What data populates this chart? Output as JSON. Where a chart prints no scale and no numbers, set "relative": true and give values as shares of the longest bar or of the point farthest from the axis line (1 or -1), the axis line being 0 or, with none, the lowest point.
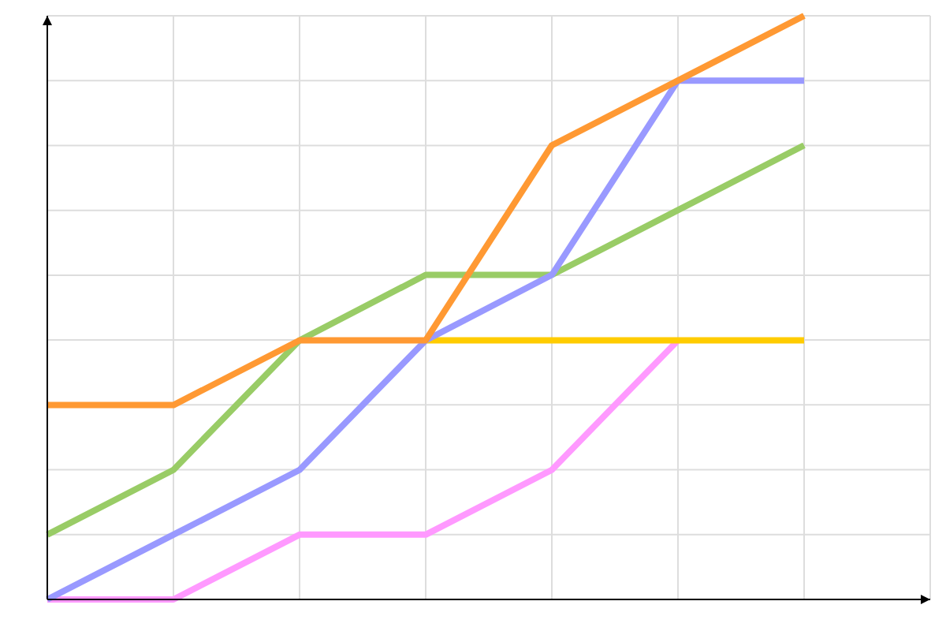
{
  "chart_data": {
    "type": "line",
    "relative": true,
    "grid": true,
    "line_style": "solid",
    "categories": [
      null,
      null,
      null,
      null,
      null,
      null,
      null
    ],
    "series": [
      {
        "color": "#ff99ff",
        "values": [
          0,
          0,
          0.111,
          0.111,
          0.222,
          0.444,
          null
        ]
      },
      {
        "color": "#ffcc00",
        "values": [
          null,
          null,
          null,
          0.444,
          0.444,
          0.444,
          0.444
        ]
      },
      {
        "color": "#99cc66",
        "values": [
          0.111,
          0.222,
          0.444,
          0.556,
          0.556,
          0.667,
          0.778
        ]
      },
      {
        "color": "#9999ff",
        "values": [
          0,
          0.111,
          0.222,
          0.444,
          0.556,
          0.889,
          0.889
        ]
      },
      {
        "color": "#ff9933",
        "values": [
          0.333,
          0.333,
          0.444,
          0.444,
          0.778,
          0.889,
          1
        ]
      }
    ]
  }
}
